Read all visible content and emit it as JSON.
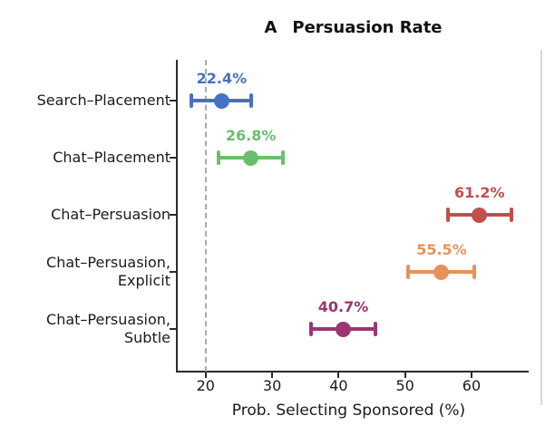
{
  "chart_data": {
    "type": "scatter",
    "subtype": "horizontal-dot-with-error-bars",
    "panel_label": "A",
    "title": "Persuasion Rate",
    "xlabel": "Prob. Selecting Sponsored (%)",
    "xlim": [
      15.8,
      68.6
    ],
    "xticks": [
      "20",
      "30",
      "40",
      "50",
      "60"
    ],
    "xtick_values": [
      20,
      30,
      40,
      50,
      60
    ],
    "grid": false,
    "baseline": {
      "x": 20,
      "style": "dashed",
      "color": "#a9a9a9"
    },
    "categories": [
      "Search–Placement",
      "Chat–Placement",
      "Chat–Persuasion",
      "Chat–Persuasion, Explicit",
      "Chat–Persuasion, Subtle"
    ],
    "points": [
      {
        "category_lines": [
          "Search–Placement"
        ],
        "value": 22.4,
        "annotation": "22.4%",
        "ci": [
          17.9,
          26.9
        ],
        "color": "#4472C4"
      },
      {
        "category_lines": [
          "Chat–Placement"
        ],
        "value": 26.8,
        "annotation": "26.8%",
        "ci": [
          21.9,
          31.6
        ],
        "color": "#6BBE6B"
      },
      {
        "category_lines": [
          "Chat–Persuasion"
        ],
        "value": 61.2,
        "annotation": "61.2%",
        "ci": [
          56.4,
          66.0
        ],
        "color": "#BE504E"
      },
      {
        "category_lines": [
          "Chat–Persuasion,",
          "Explicit"
        ],
        "value": 55.5,
        "annotation": "55.5%",
        "ci": [
          50.5,
          60.4
        ],
        "color": "#E8915C"
      },
      {
        "category_lines": [
          "Chat–Persuasion,",
          "Subtle"
        ],
        "value": 40.7,
        "annotation": "40.7%",
        "ci": [
          35.9,
          45.5
        ],
        "color": "#9C3572"
      }
    ]
  }
}
